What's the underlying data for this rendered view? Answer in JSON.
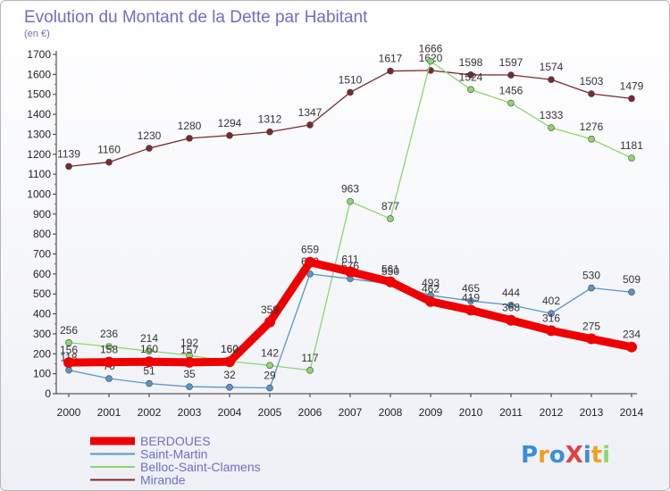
{
  "chart_data": {
    "type": "line",
    "title": "Evolution du Montant de la Dette par Habitant",
    "subtitle": "(en €)",
    "x": [
      "2000",
      "2001",
      "2002",
      "2003",
      "2004",
      "2005",
      "2006",
      "2007",
      "2008",
      "2009",
      "2010",
      "2011",
      "2012",
      "2013",
      "2014"
    ],
    "ylim": [
      0,
      1700
    ],
    "yticks": [
      0,
      100,
      200,
      300,
      400,
      500,
      600,
      700,
      800,
      900,
      1000,
      1100,
      1200,
      1300,
      1400,
      1500,
      1600,
      1700
    ],
    "grid": false,
    "legend_position": "bottom-left",
    "series": [
      {
        "name": "Mirande",
        "color": "#7a2a2e",
        "values": [
          1139,
          1160,
          1230,
          1280,
          1294,
          1312,
          1347,
          1510,
          1617,
          1620,
          1598,
          1597,
          1574,
          1503,
          1479
        ]
      },
      {
        "name": "Belloc-Saint-Clamens",
        "color": "#8ed66e",
        "values": [
          256,
          236,
          214,
          192,
          162,
          142,
          117,
          963,
          877,
          1666,
          1524,
          1456,
          1333,
          1276,
          1181
        ]
      },
      {
        "name": "Saint-Martin",
        "color": "#5a96c8",
        "values": [
          118,
          76,
          51,
          35,
          32,
          29,
          600,
          576,
          550,
          493,
          465,
          444,
          402,
          530,
          509
        ]
      },
      {
        "name": "BERDOUES",
        "color": "#ee0000",
        "values": [
          156,
          158,
          160,
          157,
          160,
          359,
          659,
          611,
          561,
          462,
          419,
          368,
          316,
          275,
          234
        ]
      }
    ]
  },
  "logo": {
    "text": "ProXiti"
  }
}
